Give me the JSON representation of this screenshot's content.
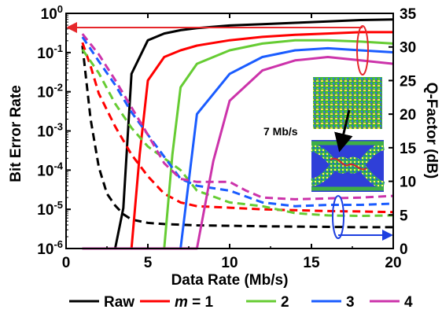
{
  "chart_data": {
    "type": "line",
    "xlabel": "Data Rate (Mb/s)",
    "ylabel_left": "Bit Error Rate",
    "ylabel_right": "Q-Factor (dB)",
    "x_ticks": [
      "0",
      "5",
      "10",
      "15",
      "20"
    ],
    "y_left_ticks": [
      "10^0",
      "10^-1",
      "10^-2",
      "10^-3",
      "10^-4",
      "10^-5",
      "10^-6"
    ],
    "y_right_ticks": [
      "0",
      "5",
      "10",
      "15",
      "20",
      "25",
      "30",
      "35"
    ],
    "xlim": [
      0,
      20
    ],
    "ylim_left_log10": [
      -6,
      0
    ],
    "ylim_right": [
      0,
      35
    ],
    "legend_position": "bottom",
    "annotation": "7 Mb/s",
    "series": [
      {
        "name": "Raw",
        "legend_label": "Raw",
        "color": "#000000",
        "q_factor": {
          "x": [
            1,
            2,
            3,
            3.5,
            4,
            5,
            6,
            7,
            8,
            10,
            12,
            14,
            16,
            18,
            20
          ],
          "y": [
            0,
            0,
            0,
            6,
            26,
            31,
            32,
            32.5,
            32.8,
            33.2,
            33.4,
            33.6,
            33.8,
            34,
            34.1
          ]
        },
        "ber": {
          "x": [
            1,
            1.5,
            2,
            2.5,
            3,
            3.5,
            4,
            5,
            6,
            8,
            10,
            12,
            15,
            18,
            20
          ],
          "y": [
            0.15,
            0.002,
            0.00012,
            2.5e-05,
            1.25e-05,
            7.5e-06,
            5.5e-06,
            4.5e-06,
            4.2e-06,
            3.9e-06,
            3.8e-06,
            3.7e-06,
            3.6e-06,
            3.5e-06,
            3.5e-06
          ]
        }
      },
      {
        "name": "m = 1",
        "legend_label_prefix": "m",
        "legend_label_suffix": " = 1",
        "color": "#ff0000",
        "q_factor": {
          "x": [
            1,
            2,
            3,
            4,
            4.5,
            5,
            6,
            7,
            8,
            10,
            12,
            14,
            16,
            18,
            20
          ],
          "y": [
            0,
            0,
            0,
            0,
            14,
            25,
            28.5,
            29.5,
            30.2,
            31,
            31.5,
            31.8,
            32,
            32.2,
            32.2
          ]
        },
        "ber": {
          "x": [
            1,
            1.5,
            2,
            3,
            4,
            5,
            6,
            7,
            8,
            10,
            12,
            14,
            16,
            18,
            20
          ],
          "y": [
            0.18,
            0.045,
            0.009,
            0.0013,
            0.00025,
            7e-05,
            2.5e-05,
            1.5e-05,
            1.2e-05,
            1.1e-05,
            1e-05,
            9.5e-06,
            9e-06,
            8.8e-06,
            8.5e-06
          ]
        }
      },
      {
        "name": "2",
        "legend_label": "2",
        "color": "#66cc33",
        "q_factor": {
          "x": [
            1,
            2,
            3,
            4,
            5,
            6,
            6.5,
            7,
            8,
            10,
            12,
            14,
            16,
            18,
            20
          ],
          "y": [
            0,
            0,
            0,
            0,
            0,
            0,
            14,
            24,
            27.5,
            29.5,
            30.5,
            31,
            31,
            30.8,
            30.5
          ]
        },
        "ber": {
          "x": [
            1,
            2,
            3,
            4,
            5,
            6,
            7,
            8,
            10,
            12,
            14,
            16,
            18,
            20
          ],
          "y": [
            0.12,
            0.03,
            0.005,
            0.0012,
            0.0004,
            0.0002,
            0.0001,
            3e-05,
            1.5e-05,
            1.2e-05,
            8e-06,
            7e-06,
            6.8e-06,
            7e-06
          ]
        }
      },
      {
        "name": "3",
        "legend_label": "3",
        "color": "#1a5cff",
        "q_factor": {
          "x": [
            1,
            2,
            3,
            4,
            5,
            6,
            7,
            7.5,
            8,
            10,
            12,
            14,
            16,
            18,
            20
          ],
          "y": [
            0,
            0,
            0,
            0,
            0,
            0,
            0,
            10,
            20,
            26,
            28.5,
            29.5,
            29.8,
            29.5,
            29.2
          ]
        },
        "ber": {
          "x": [
            1,
            2,
            3,
            4,
            5,
            6,
            7,
            8,
            10,
            12,
            14,
            16,
            18,
            20
          ],
          "y": [
            0.25,
            0.06,
            0.015,
            0.003,
            0.0008,
            0.00022,
            6e-05,
            4e-05,
            3e-05,
            1.5e-05,
            1.2e-05,
            1.3e-05,
            1.3e-05,
            1.4e-05
          ]
        }
      },
      {
        "name": "4",
        "legend_label": "4",
        "color": "#cc33aa",
        "q_factor": {
          "x": [
            1,
            2,
            3,
            4,
            5,
            6,
            7,
            8,
            9,
            10,
            12,
            14,
            16,
            18,
            20
          ],
          "y": [
            0,
            0,
            0,
            0,
            0,
            0,
            0,
            0,
            13,
            22,
            26.5,
            28,
            28.5,
            28,
            27.5
          ]
        },
        "ber": {
          "x": [
            1,
            2,
            3,
            4,
            5,
            6,
            7,
            8,
            9,
            10,
            11,
            12,
            14,
            16,
            18,
            20
          ],
          "y": [
            0.3,
            0.09,
            0.02,
            0.004,
            0.0008,
            0.00015,
            6e-05,
            5e-05,
            5e-05,
            5e-05,
            3e-05,
            2e-05,
            1.8e-05,
            1.9e-05,
            2e-05,
            2.2e-05
          ]
        }
      }
    ]
  }
}
